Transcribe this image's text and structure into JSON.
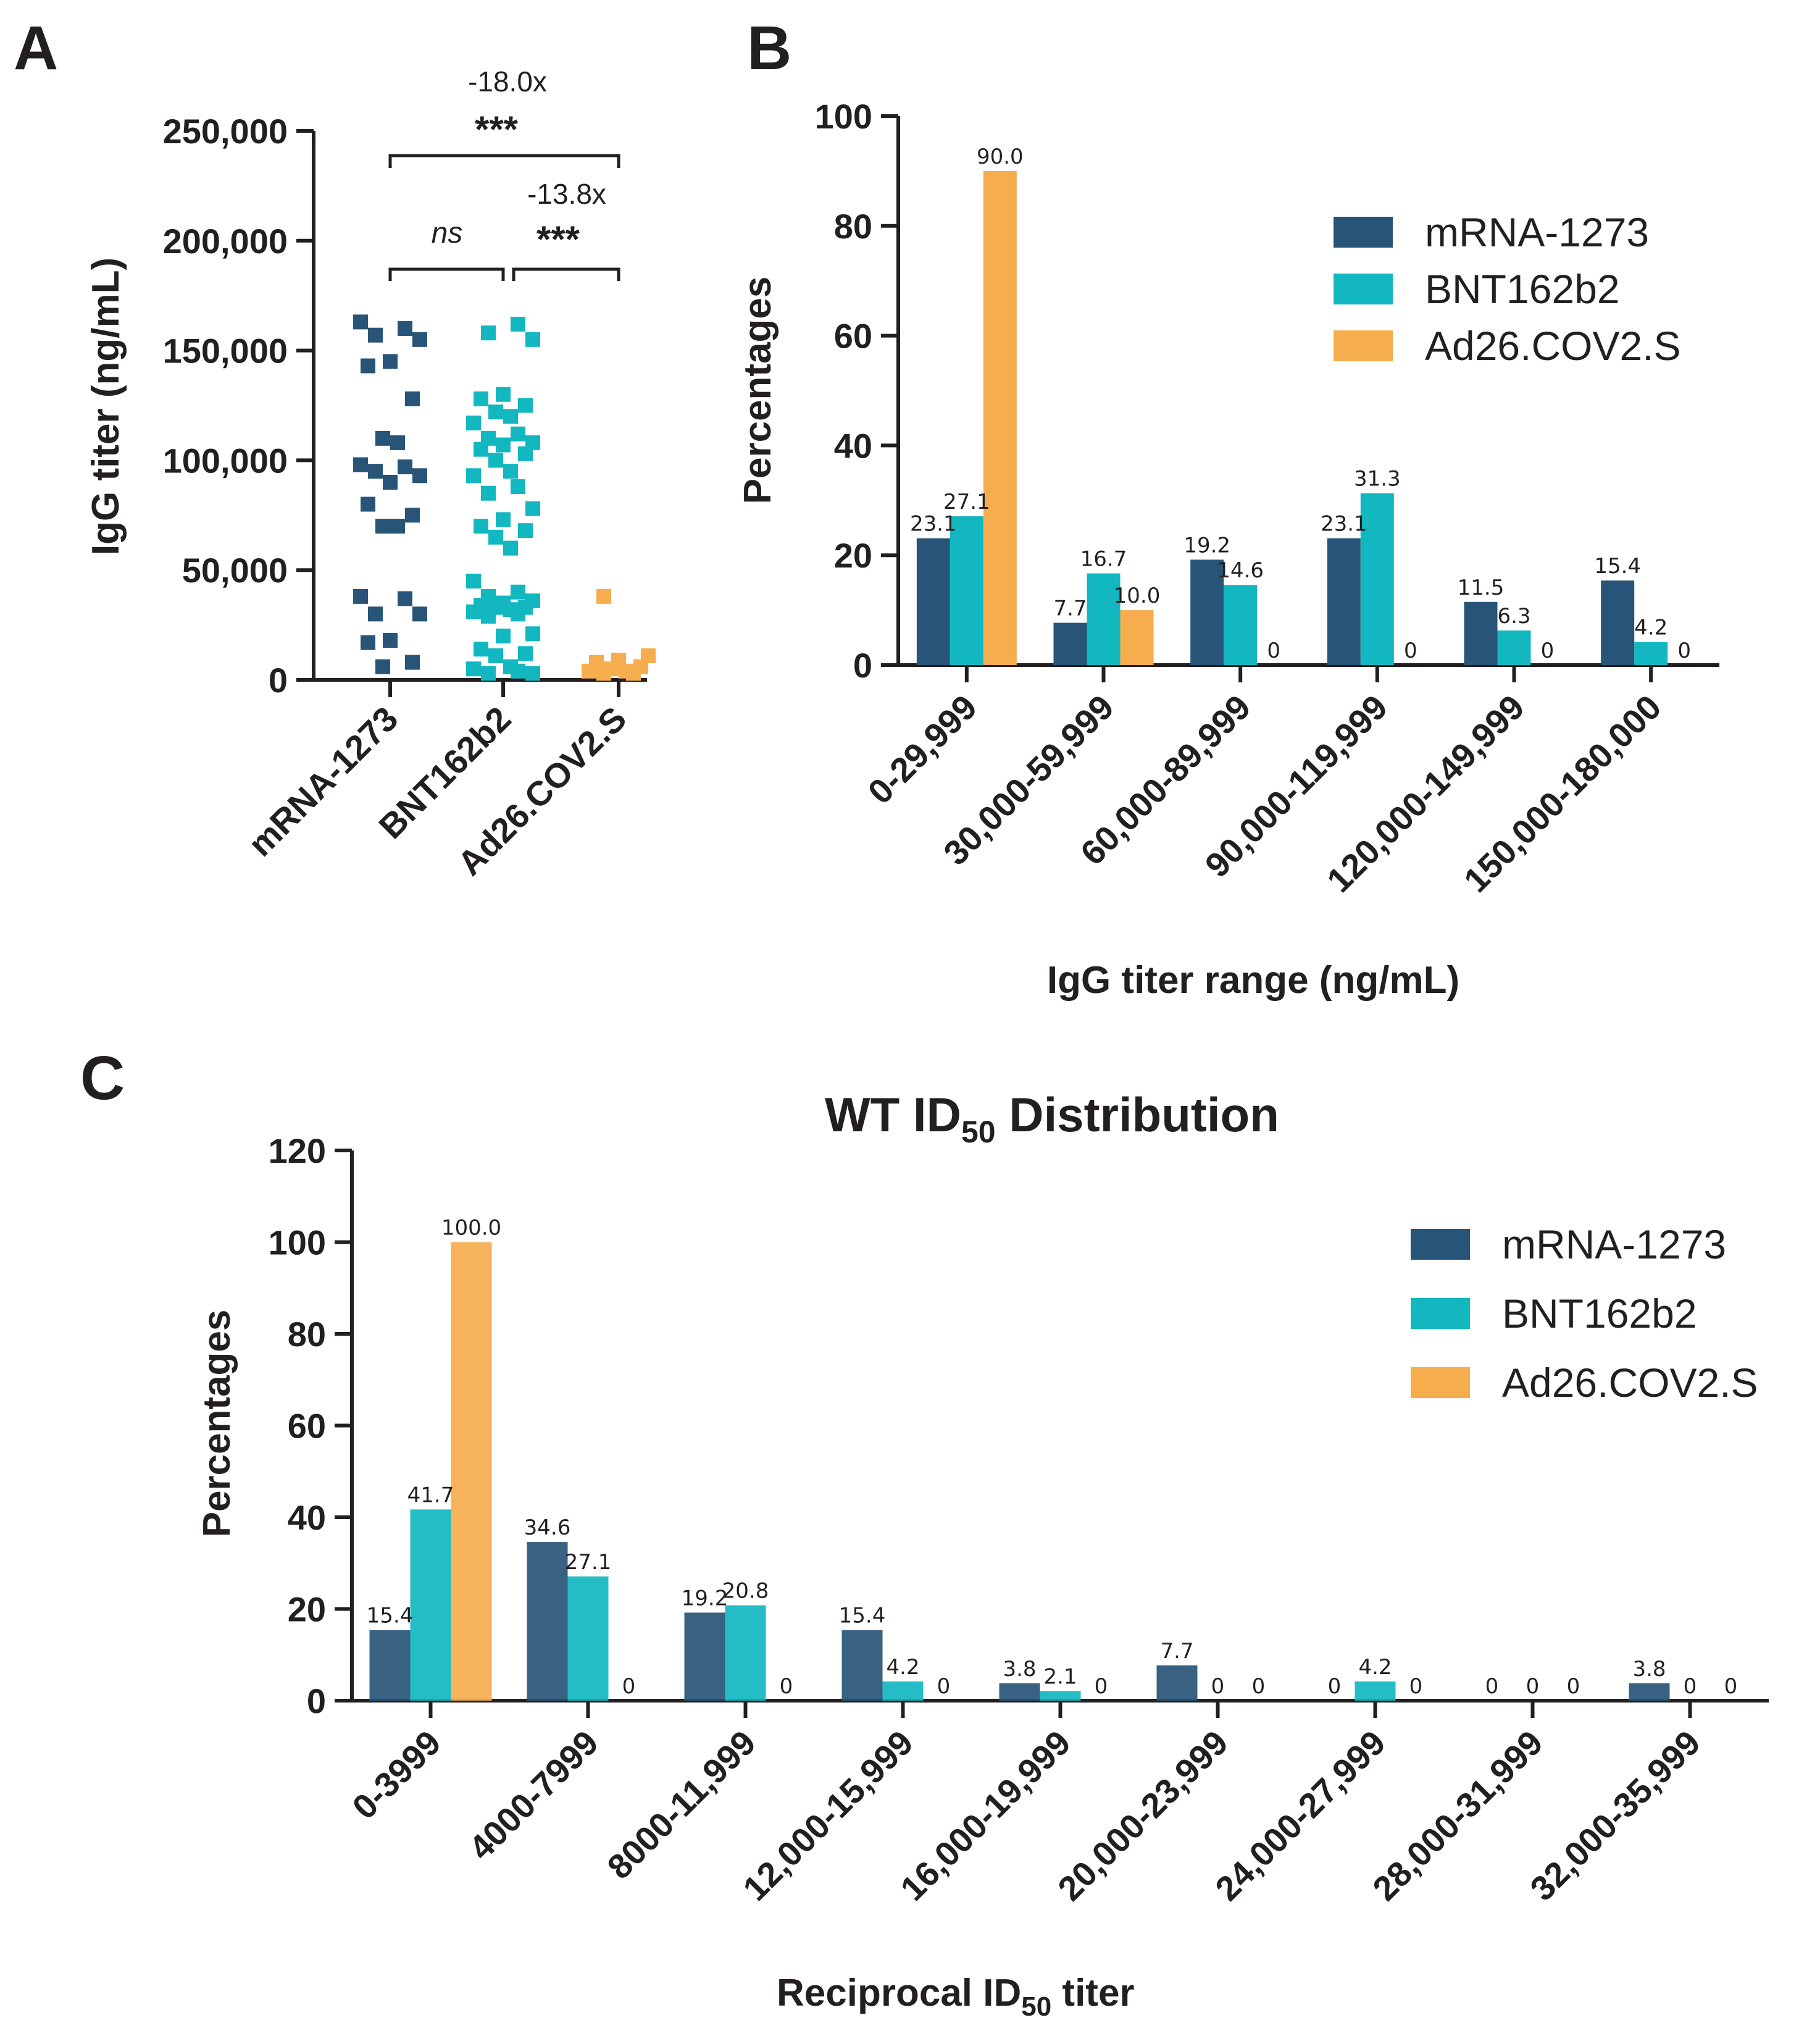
{
  "colors": {
    "mRNA-1273": "#285577",
    "BNT162b2": "#12b7c0",
    "Ad26.COV2.S": "#f5ad4d",
    "axis": "#231f20"
  },
  "panels": {
    "a": {
      "letter": "A"
    },
    "b": {
      "letter": "B"
    },
    "c": {
      "letter": "C"
    }
  },
  "chart_data": [
    {
      "panel": "A",
      "type": "scatter",
      "title": "",
      "xlabel": "",
      "ylabel": "IgG titer (ng/mL)",
      "ylim": [
        0,
        250000
      ],
      "yticks": [
        0,
        50000,
        100000,
        150000,
        200000,
        250000
      ],
      "yticklabels": [
        "0",
        "50,000",
        "100,000",
        "150,000",
        "200,000",
        "250,000"
      ],
      "categories": [
        "mRNA-1273",
        "BNT162b2",
        "Ad26.COV2.S"
      ],
      "series": [
        {
          "name": "mRNA-1273",
          "values": [
            163000,
            160000,
            157000,
            155000,
            145000,
            143000,
            128000,
            110000,
            108000,
            98000,
            97000,
            95000,
            93000,
            90000,
            80000,
            75000,
            70000,
            70000,
            38000,
            37000,
            30000,
            30000,
            18000,
            17000,
            8000,
            6000
          ]
        },
        {
          "name": "BNT162b2",
          "values": [
            162000,
            158000,
            155000,
            130000,
            128000,
            125000,
            122000,
            120000,
            117000,
            112000,
            110000,
            108000,
            107000,
            105000,
            103000,
            100000,
            95000,
            93000,
            88000,
            85000,
            78000,
            73000,
            70000,
            68000,
            65000,
            60000,
            45000,
            40000,
            38000,
            36000,
            35000,
            34000,
            33000,
            33000,
            32000,
            31000,
            30000,
            29000,
            21000,
            20000,
            14000,
            12000,
            11000,
            6000,
            5000,
            4000,
            3000,
            3000
          ]
        },
        {
          "name": "Ad26.COV2.S",
          "values": [
            38000,
            11000,
            9000,
            8000,
            6000,
            5000,
            4000,
            4000,
            3000,
            3000
          ]
        }
      ],
      "comparisons": [
        {
          "groups": [
            "mRNA-1273",
            "BNT162b2"
          ],
          "label": "ns",
          "fold": ""
        },
        {
          "groups": [
            "BNT162b2",
            "Ad26.COV2.S"
          ],
          "label": "***",
          "fold": "-13.8x"
        },
        {
          "groups": [
            "mRNA-1273",
            "Ad26.COV2.S"
          ],
          "label": "***",
          "fold": "-18.0x"
        }
      ]
    },
    {
      "panel": "B",
      "type": "bar",
      "title": "",
      "xlabel": "IgG titer range (ng/mL)",
      "ylabel": "Percentages",
      "ylim": [
        0,
        100
      ],
      "yticks": [
        0,
        20,
        40,
        60,
        80,
        100
      ],
      "categories": [
        "0-29,999",
        "30,000-59,999",
        "60,000-89,999",
        "90,000-119,999",
        "120,000-149,999",
        "150,000-180,000"
      ],
      "series": [
        {
          "name": "mRNA-1273",
          "values": [
            23.1,
            7.7,
            19.2,
            23.1,
            11.5,
            15.4
          ],
          "labels": [
            "23.1",
            "7.7",
            "19.2",
            "23.1",
            "11.5",
            "15.4"
          ]
        },
        {
          "name": "BNT162b2",
          "values": [
            27.1,
            16.7,
            14.6,
            31.3,
            6.3,
            4.2
          ],
          "labels": [
            "27.1",
            "16.7",
            "14.6",
            "31.3",
            "6.3",
            "4.2"
          ]
        },
        {
          "name": "Ad26.COV2.S",
          "values": [
            90.0,
            10.0,
            0,
            0,
            0,
            0
          ],
          "labels": [
            "90.0",
            "10.0",
            "0",
            "0",
            "0",
            "0"
          ]
        }
      ],
      "legend": {
        "position": "top-right",
        "entries": [
          "mRNA-1273",
          "BNT162b2",
          "Ad26.COV2.S"
        ]
      }
    },
    {
      "panel": "C",
      "type": "bar",
      "title": "WT ID50 Distribution",
      "xlabel": "Reciprocal ID50 titer",
      "ylabel": "Percentages",
      "ylim": [
        0,
        120
      ],
      "yticks": [
        0,
        20,
        40,
        60,
        80,
        100,
        120
      ],
      "categories": [
        "0-3999",
        "4000-7999",
        "8000-11,999",
        "12,000-15,999",
        "16,000-19,999",
        "20,000-23,999",
        "24,000-27,999",
        "28,000-31,999",
        "32,000-35,999"
      ],
      "series": [
        {
          "name": "mRNA-1273",
          "values": [
            15.4,
            34.6,
            19.2,
            15.4,
            3.8,
            7.7,
            0,
            0,
            3.8
          ],
          "labels": [
            "15.4",
            "34.6",
            "19.2",
            "15.4",
            "3.8",
            "7.7",
            "0",
            "0",
            "3.8"
          ]
        },
        {
          "name": "BNT162b2",
          "values": [
            41.7,
            27.1,
            20.8,
            4.2,
            2.1,
            0,
            4.2,
            0,
            0
          ],
          "labels": [
            "41.7",
            "27.1",
            "20.8",
            "4.2",
            "2.1",
            "0",
            "4.2",
            "0",
            "0"
          ]
        },
        {
          "name": "Ad26.COV2.S",
          "values": [
            100.0,
            0,
            0,
            0,
            0,
            0,
            0,
            0,
            0
          ],
          "labels": [
            "100.0",
            "0",
            "0",
            "0",
            "0",
            "0",
            "0",
            "0",
            "0"
          ]
        }
      ],
      "legend": {
        "position": "top-right",
        "entries": [
          "mRNA-1273",
          "BNT162b2",
          "Ad26.COV2.S"
        ]
      }
    }
  ]
}
